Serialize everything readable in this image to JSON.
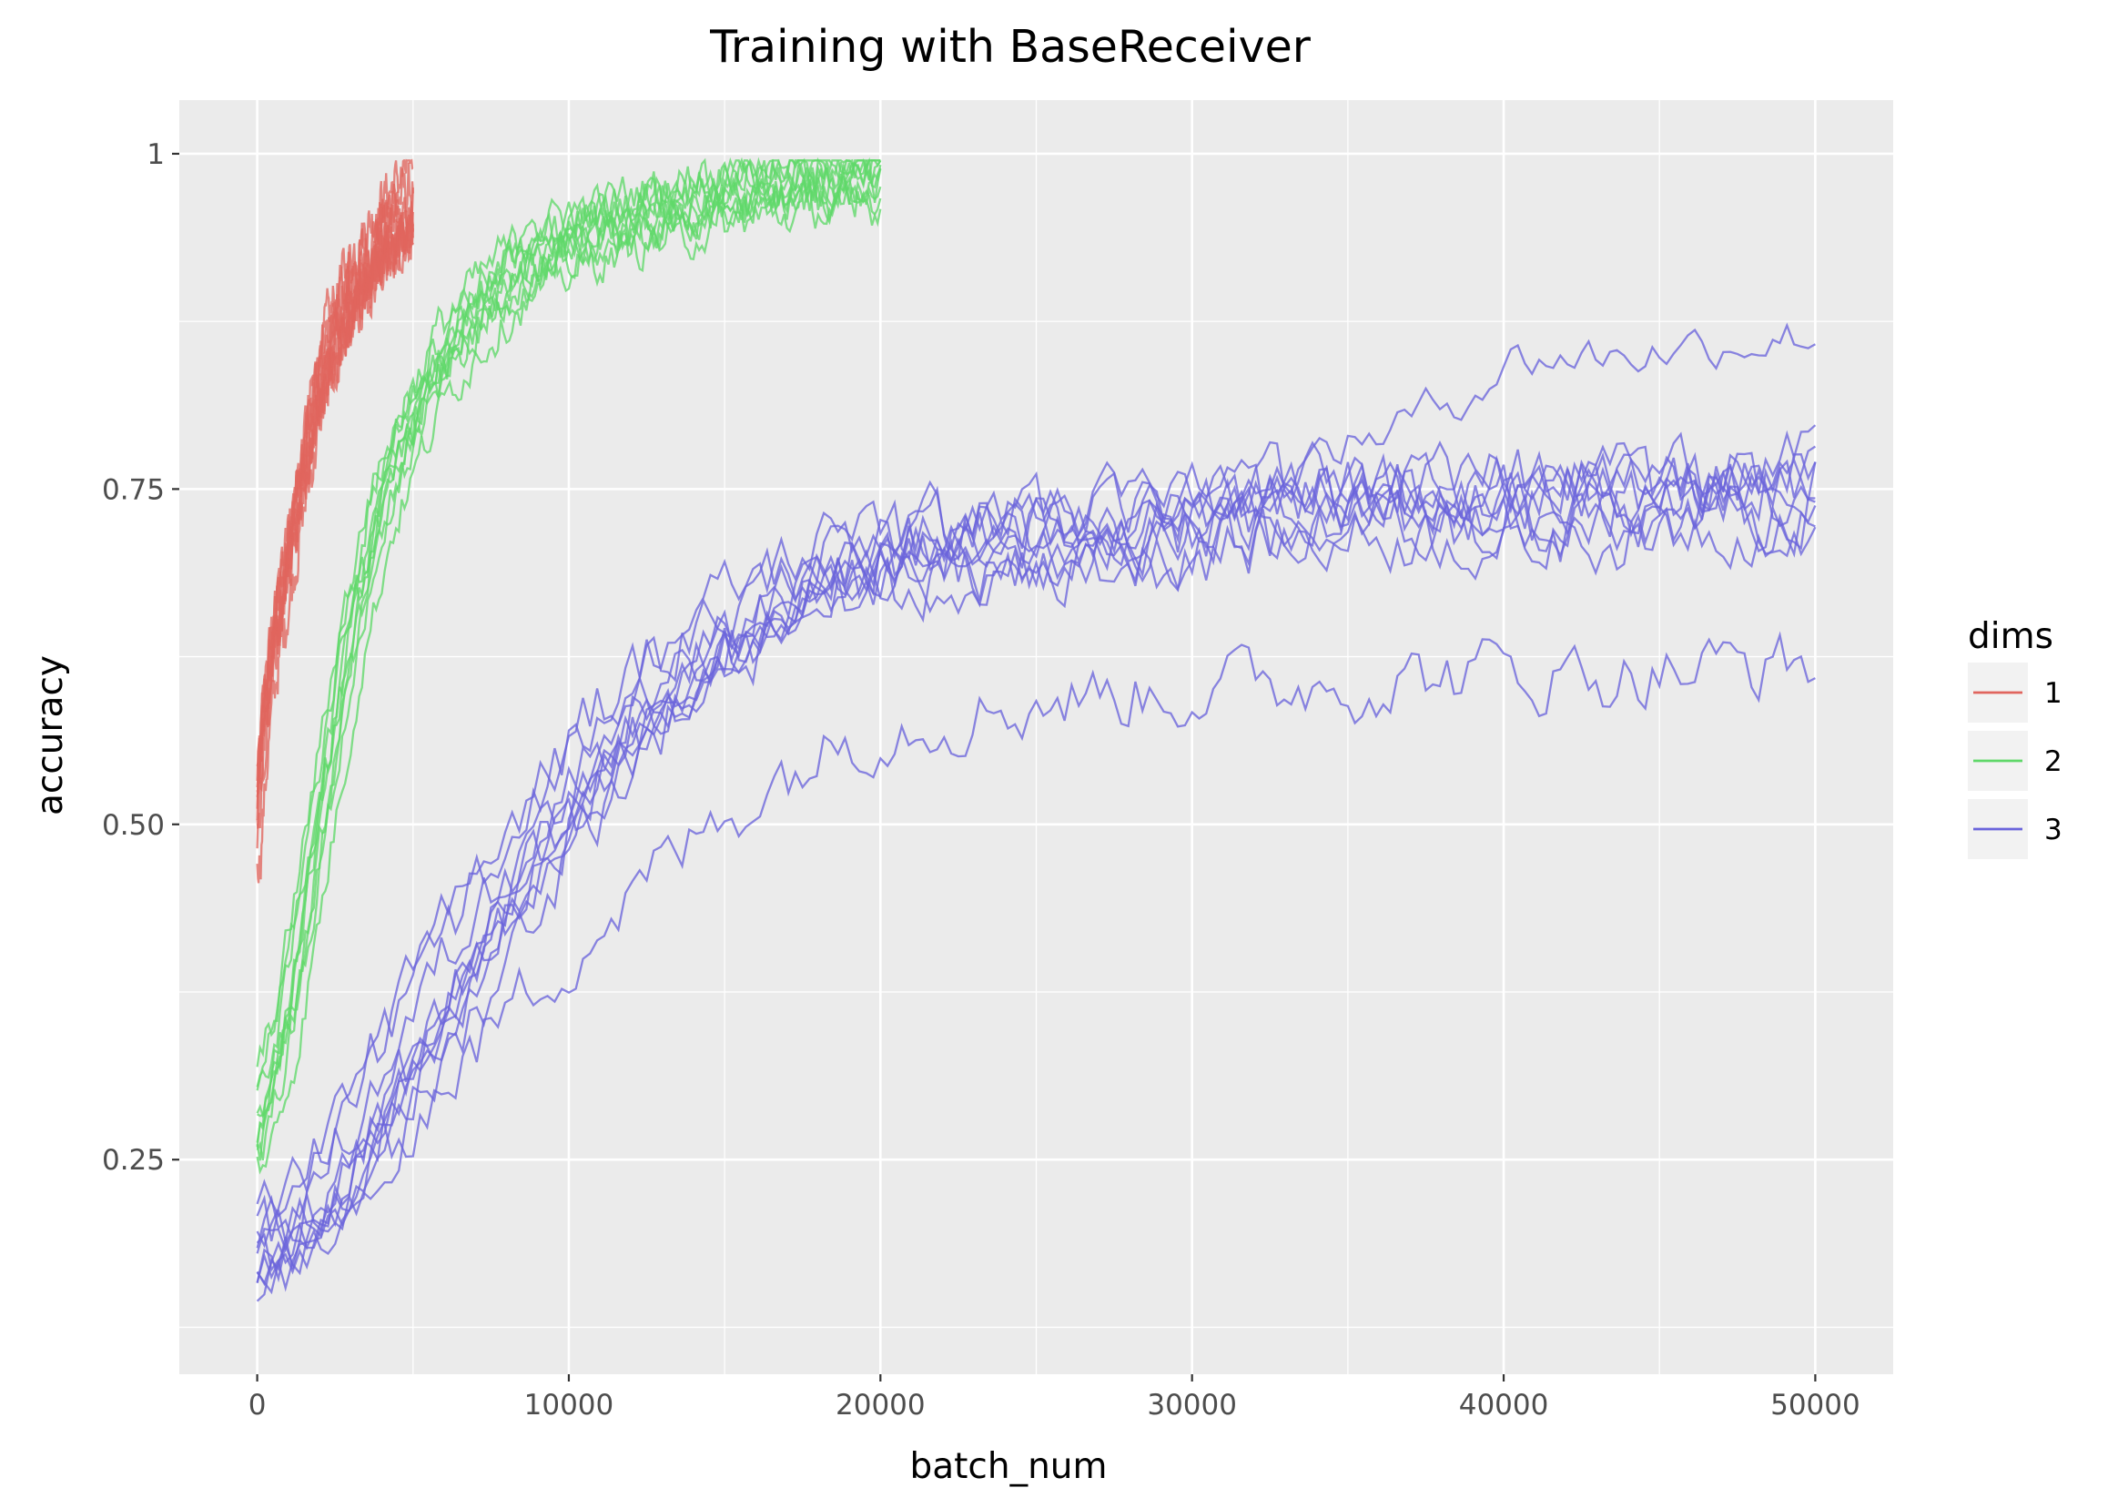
{
  "chart_data": {
    "type": "line",
    "title": "Training with BaseReceiver",
    "xlabel": "batch_num",
    "ylabel": "accuracy",
    "xlim": [
      -2500,
      52500
    ],
    "ylim": [
      0.09,
      1.04
    ],
    "x_ticks": [
      0,
      10000,
      20000,
      30000,
      40000,
      50000
    ],
    "x_tick_labels": [
      "0",
      "10000",
      "20000",
      "30000",
      "40000",
      "50000"
    ],
    "y_ticks": [
      0.25,
      0.5,
      0.75,
      1.0
    ],
    "y_tick_labels": [
      "0.25",
      "0.50",
      "0.75",
      "1"
    ],
    "grid": true,
    "legend": {
      "title": "dims",
      "position": "right",
      "entries": [
        {
          "label": "1",
          "color": "#e0655e"
        },
        {
          "label": "2",
          "color": "#5fd869"
        },
        {
          "label": "3",
          "color": "#6a64db"
        }
      ]
    },
    "series": [
      {
        "group": "1",
        "color": "#e0655e",
        "runs": 10,
        "jitter": 0.015,
        "points": [
          [
            0,
            0.5
          ],
          [
            250,
            0.58
          ],
          [
            500,
            0.63
          ],
          [
            1000,
            0.7
          ],
          [
            1500,
            0.77
          ],
          [
            2000,
            0.83
          ],
          [
            2500,
            0.87
          ],
          [
            3000,
            0.9
          ],
          [
            3500,
            0.92
          ],
          [
            4000,
            0.94
          ],
          [
            4500,
            0.955
          ],
          [
            5000,
            0.965
          ]
        ]
      },
      {
        "group": "2",
        "color": "#5fd869",
        "runs": 10,
        "jitter": 0.012,
        "points": [
          [
            0,
            0.27
          ],
          [
            1000,
            0.36
          ],
          [
            2000,
            0.5
          ],
          [
            3000,
            0.64
          ],
          [
            4000,
            0.74
          ],
          [
            5000,
            0.8
          ],
          [
            6000,
            0.85
          ],
          [
            7000,
            0.88
          ],
          [
            8000,
            0.905
          ],
          [
            10000,
            0.935
          ],
          [
            12000,
            0.95
          ],
          [
            14000,
            0.962
          ],
          [
            16000,
            0.972
          ],
          [
            18000,
            0.978
          ],
          [
            20000,
            0.98
          ]
        ]
      },
      {
        "group": "3",
        "color": "#6a64db",
        "runs": 9,
        "jitter": 0.02,
        "points": [
          [
            0,
            0.16
          ],
          [
            1000,
            0.17
          ],
          [
            2000,
            0.19
          ],
          [
            3000,
            0.22
          ],
          [
            4000,
            0.26
          ],
          [
            5000,
            0.3
          ],
          [
            6000,
            0.34
          ],
          [
            7000,
            0.38
          ],
          [
            8000,
            0.42
          ],
          [
            10000,
            0.49
          ],
          [
            12000,
            0.55
          ],
          [
            14000,
            0.6
          ],
          [
            16000,
            0.63
          ],
          [
            18000,
            0.66
          ],
          [
            20000,
            0.68
          ],
          [
            24000,
            0.69
          ],
          [
            28000,
            0.7
          ],
          [
            32000,
            0.71
          ],
          [
            36000,
            0.72
          ],
          [
            40000,
            0.72
          ],
          [
            44000,
            0.72
          ],
          [
            48000,
            0.73
          ],
          [
            50000,
            0.73
          ]
        ]
      },
      {
        "group": "3",
        "color": "#6a64db",
        "runs": 1,
        "jitter": 0.02,
        "points": [
          [
            0,
            0.14
          ],
          [
            2000,
            0.15
          ],
          [
            4000,
            0.22
          ],
          [
            6000,
            0.28
          ],
          [
            8000,
            0.33
          ],
          [
            10000,
            0.38
          ],
          [
            12000,
            0.42
          ],
          [
            14000,
            0.46
          ],
          [
            16000,
            0.5
          ],
          [
            18000,
            0.53
          ],
          [
            20000,
            0.555
          ],
          [
            24000,
            0.57
          ],
          [
            28000,
            0.58
          ],
          [
            32000,
            0.585
          ],
          [
            36000,
            0.59
          ],
          [
            40000,
            0.595
          ],
          [
            44000,
            0.595
          ],
          [
            48000,
            0.6
          ],
          [
            50000,
            0.6
          ]
        ]
      },
      {
        "group": "3",
        "color": "#6a64db",
        "runs": 1,
        "jitter": 0.012,
        "points": [
          [
            0,
            0.16
          ],
          [
            2000,
            0.19
          ],
          [
            4000,
            0.27
          ],
          [
            6000,
            0.35
          ],
          [
            8000,
            0.43
          ],
          [
            10000,
            0.5
          ],
          [
            12000,
            0.57
          ],
          [
            14000,
            0.61
          ],
          [
            16000,
            0.64
          ],
          [
            18000,
            0.67
          ],
          [
            20000,
            0.69
          ],
          [
            24000,
            0.71
          ],
          [
            28000,
            0.72
          ],
          [
            32000,
            0.75
          ],
          [
            35000,
            0.78
          ],
          [
            38000,
            0.81
          ],
          [
            40000,
            0.84
          ],
          [
            44000,
            0.845
          ],
          [
            48000,
            0.855
          ],
          [
            50000,
            0.86
          ]
        ]
      }
    ]
  }
}
